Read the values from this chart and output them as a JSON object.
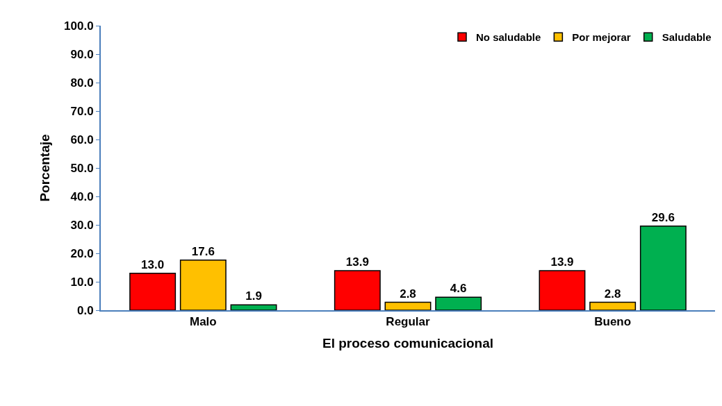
{
  "chart_data": {
    "type": "bar",
    "xlabel": "El proceso comunicacional",
    "ylabel": "Porcentaje",
    "categories": [
      "Malo",
      "Regular",
      "Bueno"
    ],
    "series": [
      {
        "name": "No saludable",
        "color": "#ff0000",
        "values": [
          13.0,
          13.9,
          13.9
        ],
        "value_labels": [
          "13.0",
          "13.9",
          "13.9"
        ]
      },
      {
        "name": "Por mejorar",
        "color": "#ffc000",
        "values": [
          17.6,
          2.8,
          2.8
        ],
        "value_labels": [
          "17.6",
          "2.8",
          "2.8"
        ]
      },
      {
        "name": "Saludable",
        "color": "#00b050",
        "values": [
          1.9,
          4.6,
          29.6
        ],
        "value_labels": [
          "1.9",
          "4.6",
          "29.6"
        ]
      }
    ],
    "ylim": [
      0,
      100
    ],
    "yticks": [
      {
        "value": 0,
        "label": "0.0"
      },
      {
        "value": 10,
        "label": "10.0"
      },
      {
        "value": 20,
        "label": "20.0"
      },
      {
        "value": 30,
        "label": "30.0"
      },
      {
        "value": 40,
        "label": "40.0"
      },
      {
        "value": 50,
        "label": "50.0"
      },
      {
        "value": 60,
        "label": "60.0"
      },
      {
        "value": 70,
        "label": "70.0"
      },
      {
        "value": 80,
        "label": "80.0"
      },
      {
        "value": 90,
        "label": "90.0"
      },
      {
        "value": 100,
        "label": "100.0"
      }
    ],
    "legend": "top right"
  }
}
